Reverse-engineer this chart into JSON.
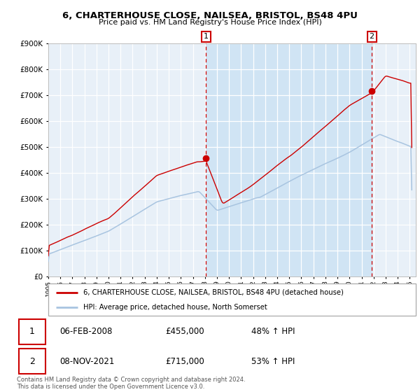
{
  "title": "6, CHARTERHOUSE CLOSE, NAILSEA, BRISTOL, BS48 4PU",
  "subtitle": "Price paid vs. HM Land Registry's House Price Index (HPI)",
  "hpi_label": "HPI: Average price, detached house, North Somerset",
  "property_label": "6, CHARTERHOUSE CLOSE, NAILSEA, BRISTOL, BS48 4PU (detached house)",
  "sale1_date": "06-FEB-2008",
  "sale1_price": 455000,
  "sale1_hpi": "48% ↑ HPI",
  "sale2_date": "08-NOV-2021",
  "sale2_price": 715000,
  "sale2_hpi": "53% ↑ HPI",
  "footer": "Contains HM Land Registry data © Crown copyright and database right 2024.\nThis data is licensed under the Open Government Licence v3.0.",
  "ylim": [
    0,
    900000
  ],
  "xlim_start": 1995.0,
  "xlim_end": 2025.5,
  "sale1_x": 2008.09,
  "sale2_x": 2021.85,
  "background_color": "#ffffff",
  "plot_bg_color": "#e8f0f8",
  "grid_color": "#ffffff",
  "hpi_color": "#a8c4e0",
  "property_color": "#cc0000",
  "vline_color": "#cc0000",
  "highlight_bg": "#d0e4f4"
}
